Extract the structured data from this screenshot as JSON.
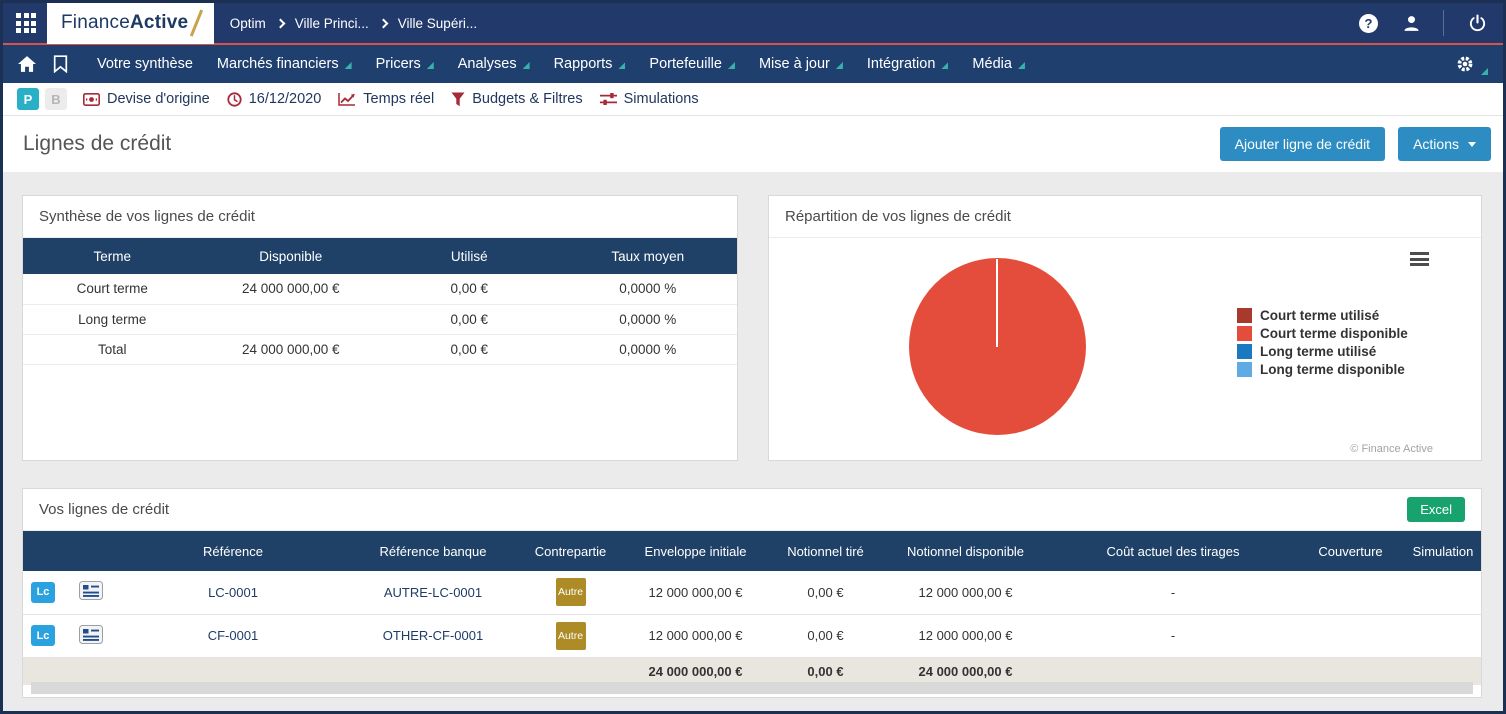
{
  "topbar": {
    "logo_finance": "Finance",
    "logo_active": "Active",
    "breadcrumb": [
      "Optim",
      "Ville Princi...",
      "Ville Supéri..."
    ]
  },
  "nav": {
    "items": [
      {
        "label": "Votre synthèse",
        "dropdown": false
      },
      {
        "label": "Marchés financiers",
        "dropdown": true
      },
      {
        "label": "Pricers",
        "dropdown": true
      },
      {
        "label": "Analyses",
        "dropdown": true
      },
      {
        "label": "Rapports",
        "dropdown": true
      },
      {
        "label": "Portefeuille",
        "dropdown": true
      },
      {
        "label": "Mise à jour",
        "dropdown": true
      },
      {
        "label": "Intégration",
        "dropdown": true
      },
      {
        "label": "Média",
        "dropdown": true
      }
    ]
  },
  "filterbar": {
    "toggle_p": "P",
    "toggle_b": "B",
    "items": [
      {
        "icon": "currency-icon",
        "label": "Devise d'origine"
      },
      {
        "icon": "clock-icon",
        "label": "16/12/2020"
      },
      {
        "icon": "chart-line-icon",
        "label": "Temps réel"
      },
      {
        "icon": "filter-funnel-icon",
        "label": "Budgets & Filtres"
      },
      {
        "icon": "sliders-icon",
        "label": "Simulations"
      }
    ]
  },
  "page_header": {
    "title": "Lignes de crédit",
    "add_button": "Ajouter ligne de crédit",
    "actions_button": "Actions"
  },
  "summary_card": {
    "title": "Synthèse de vos lignes de crédit",
    "headers": [
      "Terme",
      "Disponible",
      "Utilisé",
      "Taux moyen"
    ],
    "rows": [
      [
        "Court terme",
        "24 000 000,00 €",
        "0,00 €",
        "0,0000 %"
      ],
      [
        "Long terme",
        "",
        "0,00 €",
        "0,0000 %"
      ],
      [
        "Total",
        "24 000 000,00 €",
        "0,00 €",
        "0,0000 %"
      ]
    ]
  },
  "chart_card": {
    "title": "Répartition de vos lignes de crédit",
    "copyright": "© Finance Active"
  },
  "chart_data": {
    "type": "pie",
    "title": "Répartition de vos lignes de crédit",
    "labels": [
      "Court terme utilisé",
      "Court terme disponible",
      "Long terme utilisé",
      "Long terme disponible"
    ],
    "values": [
      0,
      24000000,
      0,
      0
    ],
    "colors": [
      "#a83a2d",
      "#e44d3c",
      "#1a79c0",
      "#5fabe4"
    ],
    "legend_position": "right"
  },
  "lines_card": {
    "title": "Vos lignes de crédit",
    "excel_button": "Excel",
    "headers": [
      "",
      "",
      "Référence",
      "Référence banque",
      "Contrepartie",
      "Enveloppe initiale",
      "Notionnel tiré",
      "Notionnel disponible",
      "Coût actuel des tirages",
      "Couverture",
      "Simulation"
    ],
    "rows": [
      {
        "type_badge": "Lc",
        "reference": "LC-0001",
        "bank_reference": "AUTRE-LC-0001",
        "counterparty": "Autre",
        "initial_envelope": "12 000 000,00 €",
        "notional_drawn": "0,00 €",
        "notional_available": "12 000 000,00 €",
        "current_cost": "-",
        "coverage": "",
        "simulation": ""
      },
      {
        "type_badge": "Lc",
        "reference": "CF-0001",
        "bank_reference": "OTHER-CF-0001",
        "counterparty": "Autre",
        "initial_envelope": "12 000 000,00 €",
        "notional_drawn": "0,00 €",
        "notional_available": "12 000 000,00 €",
        "current_cost": "-",
        "coverage": "",
        "simulation": ""
      }
    ],
    "total_row": {
      "initial_envelope": "24 000 000,00 €",
      "notional_drawn": "0,00 €",
      "notional_available": "24 000 000,00 €"
    }
  }
}
